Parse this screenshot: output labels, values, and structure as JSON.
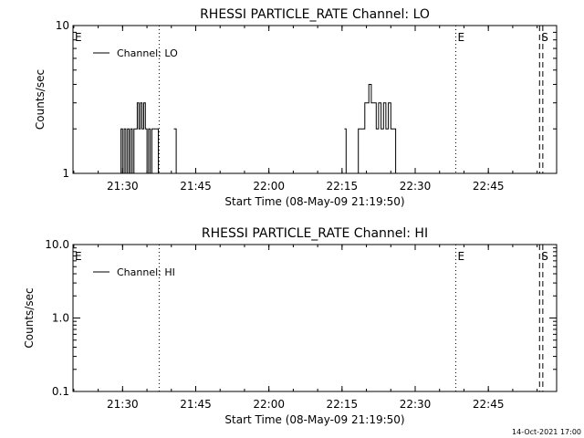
{
  "chart_data": [
    {
      "type": "line",
      "title": "RHESSI PARTICLE_RATE Channel: LO",
      "xlabel": "Start Time (08-May-09 21:19:50)",
      "ylabel": "Counts/sec",
      "yscale": "log",
      "ylim": [
        1,
        10
      ],
      "xlim": [
        "21:19:50",
        "22:59:00"
      ],
      "x_tick_labels": [
        "21:30",
        "21:45",
        "22:00",
        "22:15",
        "22:30",
        "22:45"
      ],
      "y_tick_labels": [
        "1",
        "10"
      ],
      "legend": {
        "position": "top-left",
        "entries": [
          "Channel: LO"
        ]
      },
      "markers": [
        {
          "time": "21:19:50",
          "label": "E",
          "style": "dotted"
        },
        {
          "time": "21:37:30",
          "label": "",
          "style": "dotted"
        },
        {
          "time": "22:38:20",
          "label": "E",
          "style": "dotted"
        },
        {
          "time": "22:55:30",
          "label": "S",
          "style": "dashed"
        },
        {
          "time": "22:56:10",
          "label": "",
          "style": "dashed"
        }
      ],
      "series": [
        {
          "name": "Channel: LO",
          "x": [
            "21:19:50",
            "21:29:20",
            "21:29:40",
            "21:30:00",
            "21:30:20",
            "21:30:40",
            "21:31:00",
            "21:31:20",
            "21:31:40",
            "21:32:00",
            "21:32:20",
            "21:32:40",
            "21:33:00",
            "21:33:20",
            "21:33:40",
            "21:34:00",
            "21:34:20",
            "21:34:40",
            "21:35:00",
            "21:35:20",
            "21:35:40",
            "21:36:00",
            "21:36:20",
            "21:36:40",
            "21:37:00",
            "21:37:20",
            "21:37:40",
            "21:39:30",
            "21:40:30",
            "21:41:00",
            "21:41:30",
            "22:15:10",
            "22:15:30",
            "22:15:50",
            "22:16:50",
            "22:17:30",
            "22:18:20",
            "22:19:00",
            "22:19:40",
            "22:20:10",
            "22:20:30",
            "22:21:00",
            "22:21:30",
            "22:22:00",
            "22:22:30",
            "22:23:00",
            "22:23:30",
            "22:24:00",
            "22:24:30",
            "22:25:00",
            "22:25:30",
            "22:26:00",
            "22:26:30",
            "22:27:00",
            "22:59:00"
          ],
          "y": [
            null,
            1,
            2,
            1,
            2,
            1,
            2,
            1,
            2,
            1,
            2,
            2,
            3,
            2,
            3,
            2,
            3,
            2,
            1,
            2,
            1,
            2,
            2,
            2,
            2,
            1,
            null,
            null,
            2,
            1,
            null,
            null,
            2,
            1,
            null,
            1,
            2,
            2,
            3,
            3,
            4,
            3,
            3,
            2,
            3,
            2,
            3,
            2,
            3,
            2,
            2,
            1,
            1,
            null,
            null
          ]
        }
      ]
    },
    {
      "type": "line",
      "title": "RHESSI PARTICLE_RATE Channel: HI",
      "xlabel": "Start Time (08-May-09 21:19:50)",
      "ylabel": "Counts/sec",
      "yscale": "log",
      "ylim": [
        0.1,
        10
      ],
      "xlim": [
        "21:19:50",
        "22:59:00"
      ],
      "x_tick_labels": [
        "21:30",
        "21:45",
        "22:00",
        "22:15",
        "22:30",
        "22:45"
      ],
      "y_tick_labels": [
        "0.1",
        "1.0",
        "10.0"
      ],
      "legend": {
        "position": "top-left",
        "entries": [
          "Channel: HI"
        ]
      },
      "markers": [
        {
          "time": "21:19:50",
          "label": "E",
          "style": "dotted"
        },
        {
          "time": "21:37:30",
          "label": "",
          "style": "dotted"
        },
        {
          "time": "22:38:20",
          "label": "E",
          "style": "dotted"
        },
        {
          "time": "22:55:30",
          "label": "S",
          "style": "dashed"
        },
        {
          "time": "22:56:10",
          "label": "",
          "style": "dashed"
        }
      ],
      "series": [
        {
          "name": "Channel: HI",
          "x": [],
          "y": []
        }
      ]
    }
  ],
  "footer": {
    "timestamp": "14-Oct-2021 17:00"
  }
}
